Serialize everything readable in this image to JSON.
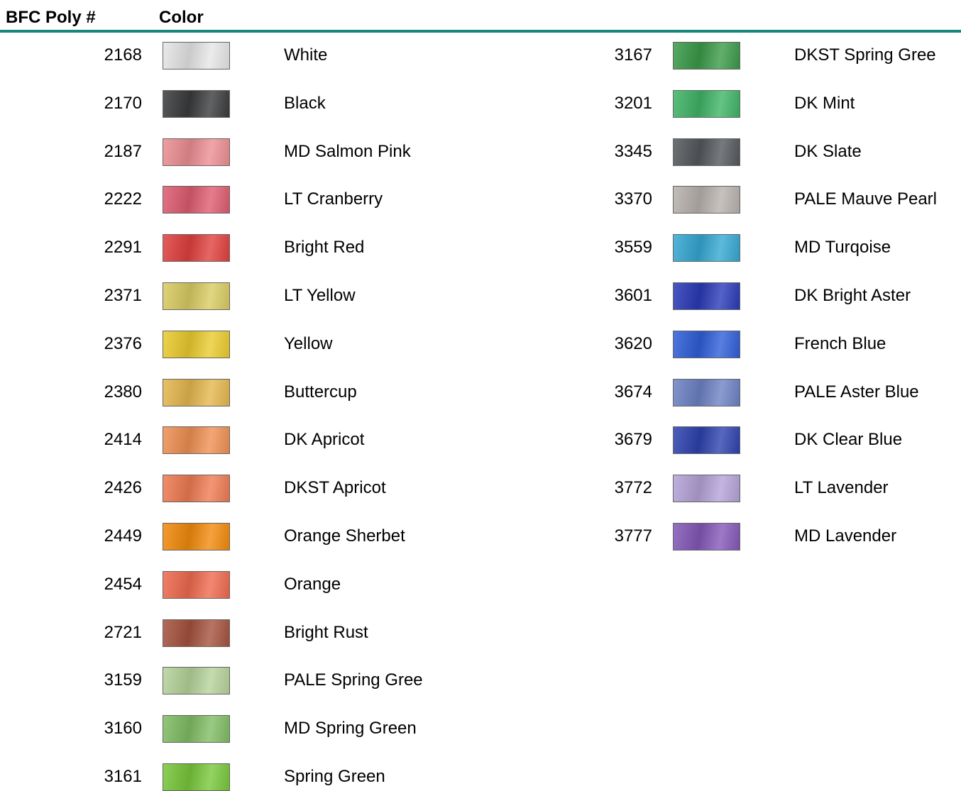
{
  "header": {
    "number": "BFC Poly #",
    "color": "Color"
  },
  "columns": [
    [
      {
        "number": "2168",
        "color": "#e6e6e6",
        "name": "White"
      },
      {
        "number": "2170",
        "color": "#3a3b3d",
        "name": "Black"
      },
      {
        "number": "2187",
        "color": "#ec8e92",
        "name": "MD Salmon Pink"
      },
      {
        "number": "2222",
        "color": "#de5c70",
        "name": "LT Cranberry"
      },
      {
        "number": "2291",
        "color": "#e0403e",
        "name": "Bright Red"
      },
      {
        "number": "2371",
        "color": "#d9cc62",
        "name": "LT Yellow"
      },
      {
        "number": "2376",
        "color": "#ebcb2e",
        "name": "Yellow"
      },
      {
        "number": "2380",
        "color": "#e5b74e",
        "name": "Buttercup"
      },
      {
        "number": "2414",
        "color": "#ef9053",
        "name": "DK Apricot"
      },
      {
        "number": "2426",
        "color": "#ef7b52",
        "name": "DKST Apricot"
      },
      {
        "number": "2449",
        "color": "#f28a0c",
        "name": "Orange Sherbet"
      },
      {
        "number": "2454",
        "color": "#ef6a4e",
        "name": "Orange"
      },
      {
        "number": "2721",
        "color": "#a5523e",
        "name": "Bright Rust"
      },
      {
        "number": "3159",
        "color": "#b6d39a",
        "name": "PALE Spring Gree"
      },
      {
        "number": "3160",
        "color": "#80bd64",
        "name": "MD Spring Green"
      },
      {
        "number": "3161",
        "color": "#78c83a",
        "name": "Spring Green"
      }
    ],
    [
      {
        "number": "3167",
        "color": "#3a9a48",
        "name": "DKST Spring Gree"
      },
      {
        "number": "3201",
        "color": "#3fb466",
        "name": "DK Mint"
      },
      {
        "number": "3345",
        "color": "#54585c",
        "name": "DK Slate"
      },
      {
        "number": "3370",
        "color": "#b8b2ae",
        "name": "PALE Mauve Pearl"
      },
      {
        "number": "3559",
        "color": "#34a8d2",
        "name": "MD Turqoise"
      },
      {
        "number": "3601",
        "color": "#2a3ab8",
        "name": "DK Bright Aster"
      },
      {
        "number": "3620",
        "color": "#2f5ed8",
        "name": "French Blue"
      },
      {
        "number": "3674",
        "color": "#6d82c4",
        "name": "PALE Aster Blue"
      },
      {
        "number": "3679",
        "color": "#2e42ae",
        "name": "DK Clear Blue"
      },
      {
        "number": "3772",
        "color": "#b4a3d8",
        "name": "LT Lavender"
      },
      {
        "number": "3777",
        "color": "#8458b8",
        "name": "MD Lavender"
      }
    ]
  ]
}
